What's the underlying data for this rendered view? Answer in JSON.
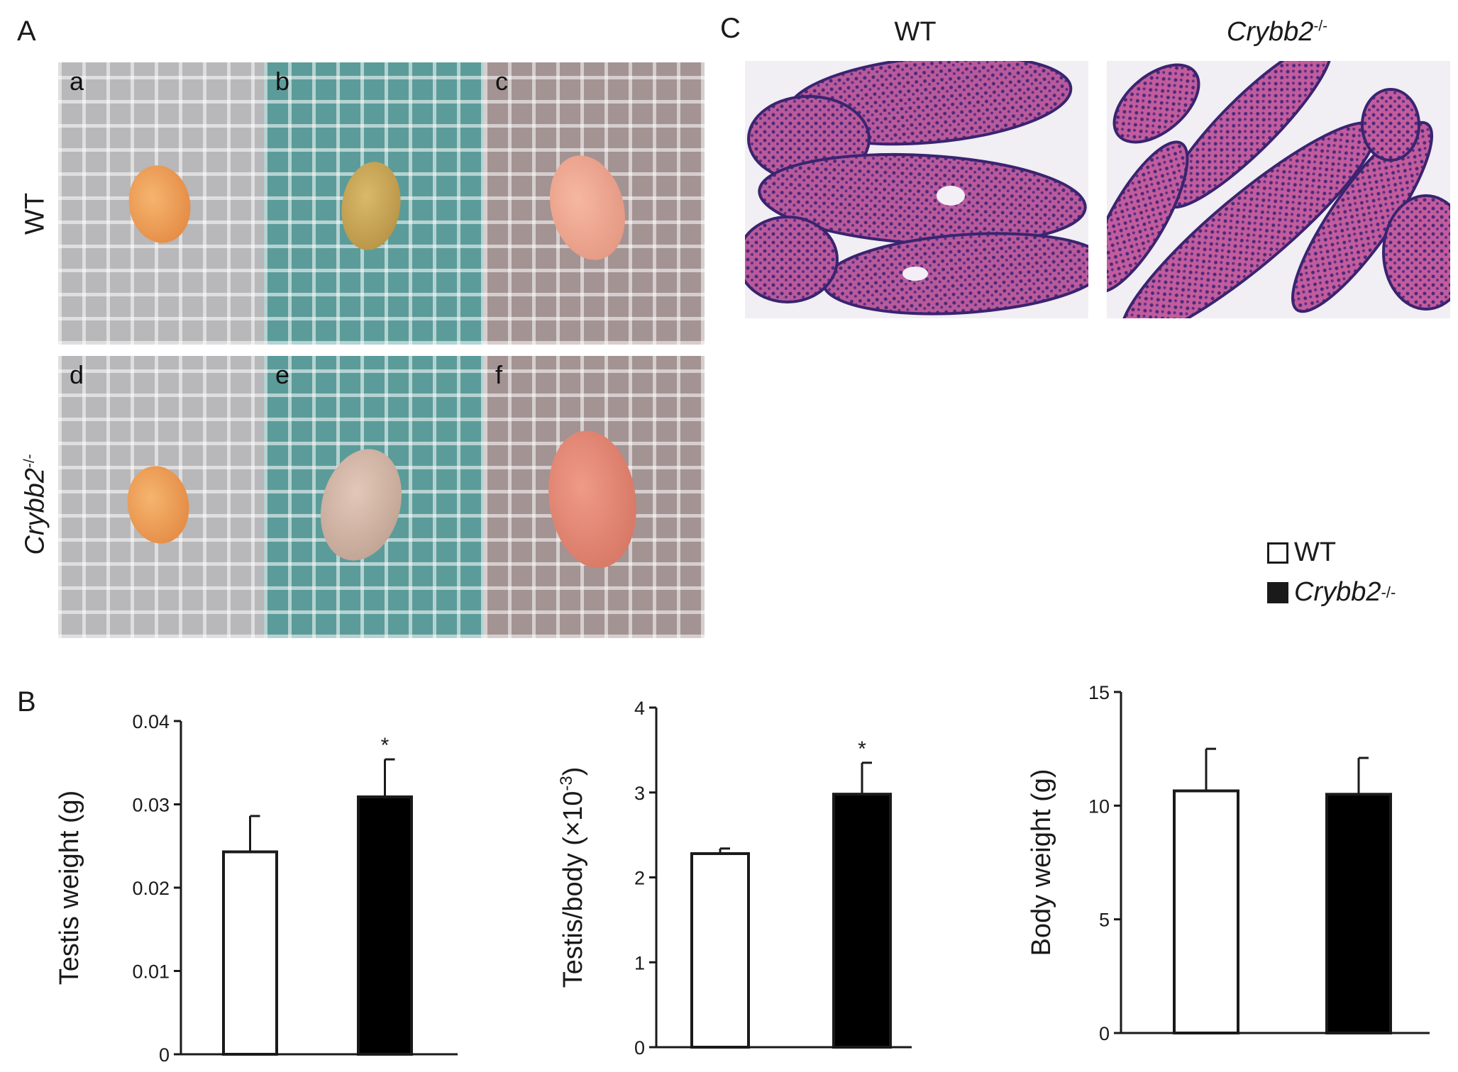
{
  "panels": {
    "A": "A",
    "B": "B",
    "C": "C"
  },
  "panelA": {
    "row_wt": "WT",
    "row_ko_gene": "Crybb2",
    "row_ko_sup": "-/-",
    "sub_letters": [
      "a",
      "b",
      "c",
      "d",
      "e",
      "f"
    ]
  },
  "panelC": {
    "title_wt": "WT",
    "title_ko_gene": "Crybb2",
    "title_ko_sup": "-/-"
  },
  "legend": {
    "wt_label": "WT",
    "ko_gene": "Crybb2",
    "ko_sup": "-/-",
    "wt_color": "#ffffff",
    "ko_color": "#000000"
  },
  "chart_data": [
    {
      "type": "bar",
      "categories": [
        "WT",
        "Crybb2-/-"
      ],
      "values": [
        0.0243,
        0.0309
      ],
      "errors": [
        0.0043,
        0.0045
      ],
      "significance": [
        "",
        "*"
      ],
      "ylabel": "Testis weight (g)",
      "ylim": [
        0,
        0.04
      ],
      "yticks": [
        "0",
        "0.01",
        "0.02",
        "0.03",
        "0.04"
      ],
      "ytick_values": [
        0,
        0.01,
        0.02,
        0.03,
        0.04
      ]
    },
    {
      "type": "bar",
      "categories": [
        "WT",
        "Crybb2-/-"
      ],
      "values": [
        2.28,
        2.98
      ],
      "errors": [
        0.06,
        0.37
      ],
      "significance": [
        "",
        "*"
      ],
      "ylabel_main": "Testis/body (×10",
      "ylabel_sup": "-3",
      "ylabel_end": ")",
      "ylim": [
        0,
        4
      ],
      "yticks": [
        "0",
        "1",
        "2",
        "3",
        "4"
      ],
      "ytick_values": [
        0,
        1,
        2,
        3,
        4
      ]
    },
    {
      "type": "bar",
      "categories": [
        "WT",
        "Crybb2-/-"
      ],
      "values": [
        10.65,
        10.5
      ],
      "errors": [
        1.85,
        1.6
      ],
      "significance": [
        "",
        ""
      ],
      "ylabel": "Body weight (g)",
      "ylim": [
        0,
        15
      ],
      "yticks": [
        "0",
        "5",
        "10",
        "15"
      ],
      "ytick_values": [
        0,
        5,
        10,
        15
      ]
    }
  ]
}
